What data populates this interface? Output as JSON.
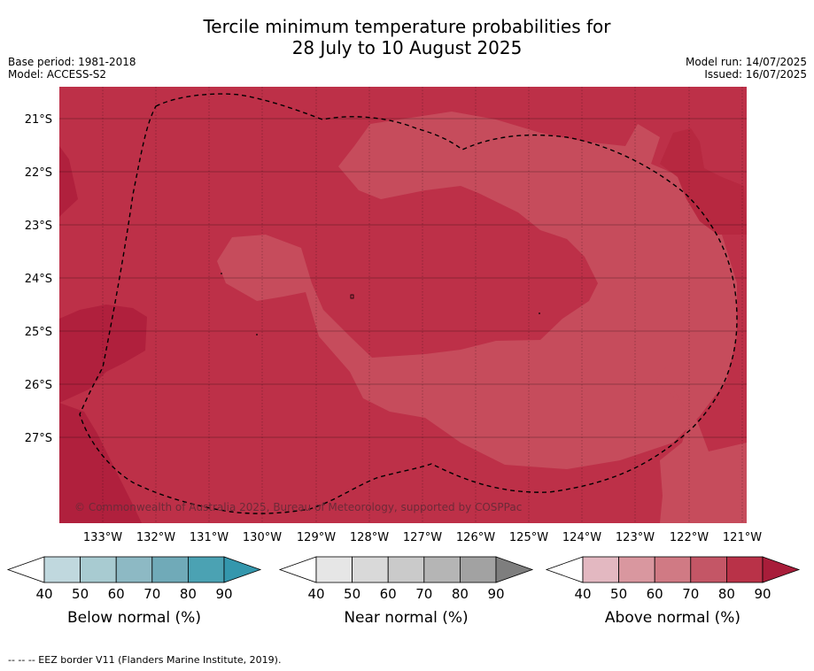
{
  "title_line1": "Tercile minimum temperature probabilities for",
  "title_line2": "28 July to 10 August 2025",
  "base_period": "Base period: 1981-2018",
  "model": "Model: ACCESS-S2",
  "model_run": "Model run: 14/07/2025",
  "issued": "Issued: 16/07/2025",
  "copyright": "© Commonwealth of Australia 2025, Bureau of Meteorology, supported by COSPPac",
  "lat_labels": [
    "21°S",
    "22°S",
    "23°S",
    "24°S",
    "25°S",
    "26°S",
    "27°S"
  ],
  "lon_labels": [
    "133°W",
    "132°W",
    "131°W",
    "130°W",
    "129°W",
    "128°W",
    "127°W",
    "126°W",
    "125°W",
    "124°W",
    "123°W",
    "122°W",
    "121°W"
  ],
  "colorbars": [
    {
      "title": "Below normal (%)",
      "ticks": [
        "40",
        "50",
        "60",
        "70",
        "80",
        "90"
      ],
      "colors": [
        "#ffffff",
        "#c0d8de",
        "#a8cbd1",
        "#8db9c4",
        "#70aab8",
        "#4ba2b3",
        "#3497ad"
      ]
    },
    {
      "title": "Near normal (%)",
      "ticks": [
        "40",
        "50",
        "60",
        "70",
        "80",
        "90"
      ],
      "colors": [
        "#ffffff",
        "#e6e6e6",
        "#d9d9d9",
        "#cacaca",
        "#b5b5b5",
        "#a2a2a2",
        "#7e7e7e"
      ]
    },
    {
      "title": "Above normal (%)",
      "ticks": [
        "40",
        "50",
        "60",
        "70",
        "80",
        "90"
      ],
      "colors": [
        "#ffffff",
        "#e3b8c1",
        "#d9979f",
        "#d07a84",
        "#c45666",
        "#b93248",
        "#a81d3a"
      ]
    }
  ],
  "footer": "--  --  -- EEZ border V11 (Flanders Marine Institute, 2019)."
}
